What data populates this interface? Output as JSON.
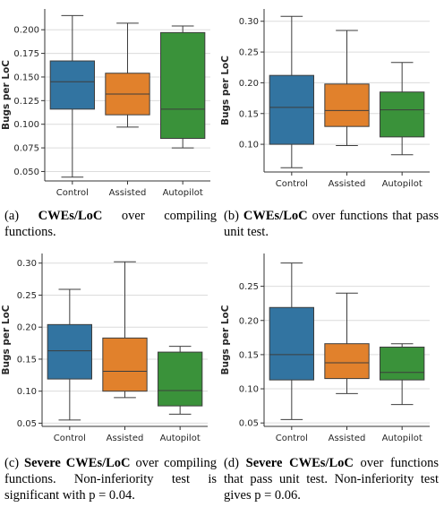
{
  "chart_data": [
    {
      "type": "box",
      "categories": [
        "Control",
        "Assisted",
        "Autopilot"
      ],
      "ylabel": "Bugs per LoC",
      "ylim": [
        0.04,
        0.222
      ],
      "yticks": [
        0.05,
        0.075,
        0.1,
        0.125,
        0.15,
        0.175,
        0.2
      ],
      "ytick_labels": [
        "0.050",
        "0.075",
        "0.100",
        "0.125",
        "0.150",
        "0.175",
        "0.200"
      ],
      "grid": true,
      "colors": [
        "#3274a1",
        "#e1812c",
        "#3a923a"
      ],
      "boxes": [
        {
          "min": 0.044,
          "q1": 0.116,
          "median": 0.145,
          "q3": 0.167,
          "max": 0.215
        },
        {
          "min": 0.097,
          "q1": 0.11,
          "median": 0.132,
          "q3": 0.154,
          "max": 0.207
        },
        {
          "min": 0.075,
          "q1": 0.085,
          "median": 0.116,
          "q3": 0.197,
          "max": 0.204
        }
      ],
      "caption_label": "(a) ",
      "caption_bold": "CWEs/LoC",
      "caption_rest": " over compiling functions."
    },
    {
      "type": "box",
      "categories": [
        "Control",
        "Assisted",
        "Autopilot"
      ],
      "ylabel": "Bugs per LoC",
      "ylim": [
        0.055,
        0.32
      ],
      "yticks": [
        0.1,
        0.15,
        0.2,
        0.25,
        0.3
      ],
      "ytick_labels": [
        "0.10",
        "0.15",
        "0.20",
        "0.25",
        "0.30"
      ],
      "grid": true,
      "colors": [
        "#3274a1",
        "#e1812c",
        "#3a923a"
      ],
      "boxes": [
        {
          "min": 0.062,
          "q1": 0.1,
          "median": 0.16,
          "q3": 0.212,
          "max": 0.308
        },
        {
          "min": 0.098,
          "q1": 0.129,
          "median": 0.155,
          "q3": 0.198,
          "max": 0.285
        },
        {
          "min": 0.083,
          "q1": 0.112,
          "median": 0.156,
          "q3": 0.185,
          "max": 0.233
        }
      ],
      "caption_label": "(b) ",
      "caption_bold": "CWEs/LoC",
      "caption_rest": " over functions that pass unit test."
    },
    {
      "type": "box",
      "categories": [
        "Control",
        "Assisted",
        "Autopilot"
      ],
      "ylabel": "Bugs per LoC",
      "ylim": [
        0.045,
        0.315
      ],
      "yticks": [
        0.05,
        0.1,
        0.15,
        0.2,
        0.25,
        0.3
      ],
      "ytick_labels": [
        "0.05",
        "0.10",
        "0.15",
        "0.20",
        "0.25",
        "0.30"
      ],
      "grid": true,
      "colors": [
        "#3274a1",
        "#e1812c",
        "#3a923a"
      ],
      "boxes": [
        {
          "min": 0.055,
          "q1": 0.119,
          "median": 0.163,
          "q3": 0.204,
          "max": 0.259
        },
        {
          "min": 0.09,
          "q1": 0.1,
          "median": 0.131,
          "q3": 0.183,
          "max": 0.302
        },
        {
          "min": 0.064,
          "q1": 0.077,
          "median": 0.101,
          "q3": 0.161,
          "max": 0.17
        }
      ],
      "caption_label": "(c) ",
      "caption_bold": "Severe CWEs/LoC",
      "caption_rest": " over compiling functions. Non-inferiority test is significant with p = 0.04."
    },
    {
      "type": "box",
      "categories": [
        "Control",
        "Assisted",
        "Autopilot"
      ],
      "ylabel": "Bugs per LoC",
      "ylim": [
        0.045,
        0.298
      ],
      "yticks": [
        0.05,
        0.1,
        0.15,
        0.2,
        0.25
      ],
      "ytick_labels": [
        "0.05",
        "0.10",
        "0.15",
        "0.20",
        "0.25"
      ],
      "grid": true,
      "colors": [
        "#3274a1",
        "#e1812c",
        "#3a923a"
      ],
      "boxes": [
        {
          "min": 0.055,
          "q1": 0.113,
          "median": 0.15,
          "q3": 0.219,
          "max": 0.284
        },
        {
          "min": 0.093,
          "q1": 0.115,
          "median": 0.138,
          "q3": 0.166,
          "max": 0.24
        },
        {
          "min": 0.077,
          "q1": 0.113,
          "median": 0.124,
          "q3": 0.161,
          "max": 0.166
        }
      ],
      "caption_label": "(d) ",
      "caption_bold": "Severe CWEs/LoC",
      "caption_rest": " over functions that pass unit test. Non-inferiority test gives p = 0.06."
    }
  ]
}
